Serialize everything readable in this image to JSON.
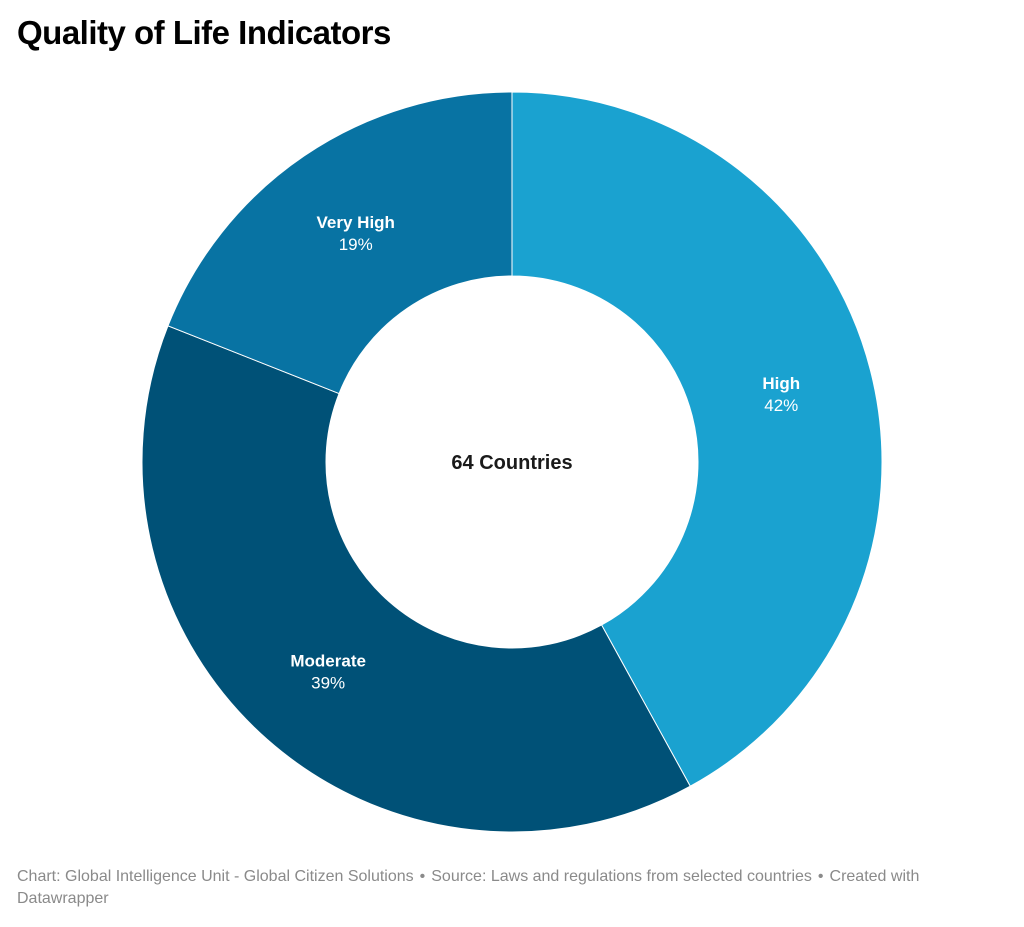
{
  "chart_data": {
    "type": "pie",
    "variant": "donut",
    "title": "Quality of Life Indicators",
    "center_label": "64 Countries",
    "slices": [
      {
        "label": "High",
        "value": 42,
        "value_label": "42%",
        "color": "#1aa2d0"
      },
      {
        "label": "Moderate",
        "value": 39,
        "value_label": "39%",
        "color": "#005177"
      },
      {
        "label": "Very High",
        "value": 19,
        "value_label": "19%",
        "color": "#0873a3"
      }
    ],
    "start": "top",
    "direction": "clockwise"
  },
  "footer": {
    "chart_credit": "Chart: Global Intelligence Unit - Global Citizen Solutions",
    "source": "Source: Laws and regulations from selected countries",
    "created": "Created with Datawrapper",
    "separator": "•"
  }
}
